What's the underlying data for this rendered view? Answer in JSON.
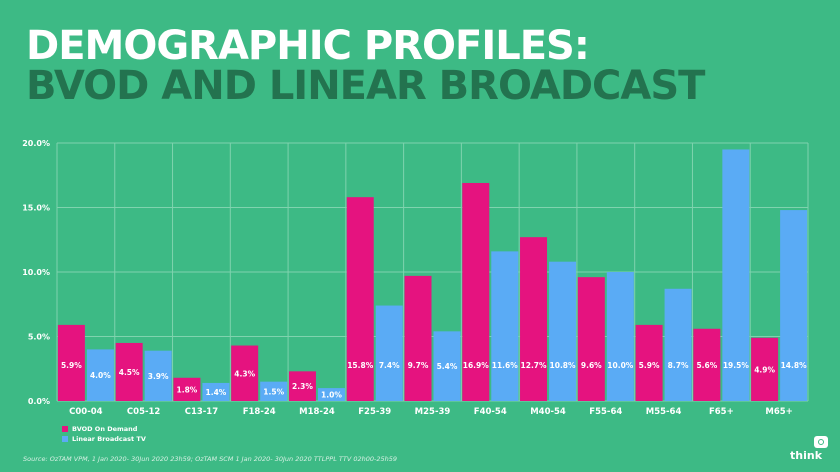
{
  "title": {
    "line1": "DEMOGRAPHIC PROFILES:",
    "line2": "BVOD AND LINEAR BROADCAST"
  },
  "chart_data": {
    "type": "bar",
    "categories": [
      "C00-04",
      "C05-12",
      "C13-17",
      "F18-24",
      "M18-24",
      "F25-39",
      "M25-39",
      "F40-54",
      "M40-54",
      "F55-64",
      "M55-64",
      "F65+",
      "M65+"
    ],
    "series": [
      {
        "name": "BVOD On Demand",
        "color": "#e5137f",
        "values": [
          5.9,
          4.5,
          1.8,
          4.3,
          2.3,
          15.8,
          9.7,
          16.9,
          12.7,
          9.6,
          5.9,
          5.6,
          4.9
        ],
        "labels": [
          "5.9%",
          "4.5%",
          "1.8%",
          "4.3%",
          "2.3%",
          "15.8%",
          "9.7%",
          "16.9%",
          "12.7%",
          "9.6%",
          "5.9%",
          "5.6%",
          "4.9%"
        ]
      },
      {
        "name": "Linear Broadcast TV",
        "color": "#5aabf5",
        "values": [
          4.0,
          3.9,
          1.4,
          1.5,
          1.0,
          7.4,
          5.4,
          11.6,
          10.8,
          10.0,
          8.7,
          19.5,
          14.8
        ],
        "labels": [
          "4.0%",
          "3.9%",
          "1.4%",
          "1.5%",
          "1.0%",
          "7.4%",
          "5.4%",
          "11.6%",
          "10.8%",
          "10.0%",
          "8.7%",
          "19.5%",
          "14.8%"
        ]
      }
    ],
    "ylim": [
      0,
      20
    ],
    "yticks": [
      0,
      5,
      10,
      15,
      20
    ],
    "ytick_labels": [
      "0.0%",
      "5.0%",
      "10.0%",
      "15.0%",
      "20.0%"
    ],
    "grid": true,
    "legend_position": "bottom-left",
    "xlabel": "",
    "ylabel": ""
  },
  "legend": {
    "items": [
      {
        "label": "BVOD On Demand",
        "color": "#e5137f"
      },
      {
        "label": "Linear Broadcast TV",
        "color": "#5aabf5"
      }
    ]
  },
  "source": "Source: OzTAM VPM, 1 Jan 2020- 30Jun 2020 23h59; OzTAM SCM 1 Jan 2020- 30Jun 2020 TTLPPL TTV 02h00-25h59",
  "logo": {
    "text": "think"
  }
}
